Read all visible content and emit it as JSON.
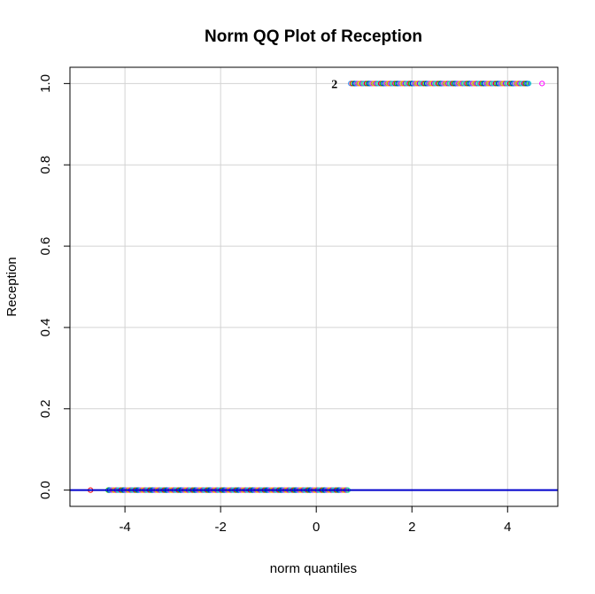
{
  "chart_data": {
    "type": "scatter",
    "title": "Norm QQ Plot of Reception",
    "xlabel": "norm quantiles",
    "ylabel": "Reception",
    "xlim": [
      -5.15,
      5.05
    ],
    "ylim": [
      -0.04,
      1.04
    ],
    "x_ticks": [
      -4,
      -2,
      0,
      2,
      4
    ],
    "x_tick_labels": [
      "-4",
      "-2",
      "0",
      "2",
      "4"
    ],
    "y_ticks": [
      0.0,
      0.2,
      0.4,
      0.6,
      0.8,
      1.0
    ],
    "y_tick_labels": [
      "0.0",
      "0.2",
      "0.4",
      "0.6",
      "0.8",
      "1.0"
    ],
    "grid": true,
    "reference_line": {
      "intercept": 0,
      "slope": 0,
      "color": "#0000cc"
    },
    "annotations": [
      {
        "text": "2",
        "x": 0.52,
        "y": 1.0
      }
    ],
    "series": [
      {
        "y": 0,
        "x_min": -4.72,
        "x_max": 0.68,
        "outlier_x": -4.72,
        "cluster_start": -4.35
      },
      {
        "y": 1,
        "x_min": 0.72,
        "x_max": 4.72,
        "outlier_x": 4.72,
        "cluster_end": 4.45
      }
    ],
    "point_colors": [
      "#ff0000",
      "#00cc00",
      "#0000ff",
      "#00cccc",
      "#ff00ff",
      "#cccc00",
      "#ff8800",
      "#8800ff",
      "#00ff88",
      "#3399ff"
    ]
  }
}
